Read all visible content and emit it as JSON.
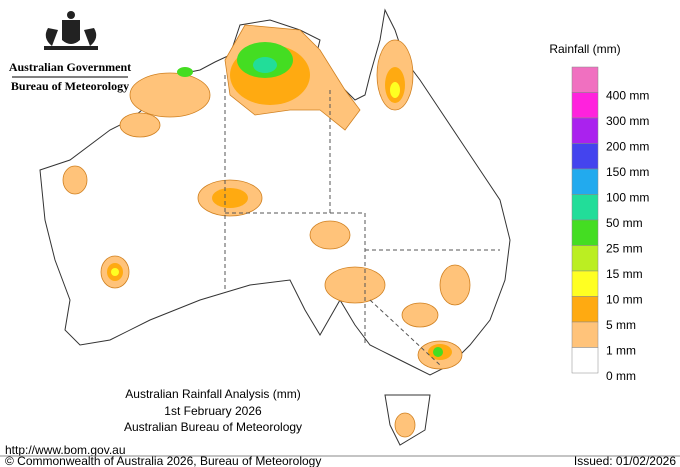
{
  "header": {
    "government": "Australian Government",
    "agency": "Bureau of Meteorology"
  },
  "legend": {
    "title": "Rainfall (mm)",
    "labels": [
      "400 mm",
      "300 mm",
      "200 mm",
      "150 mm",
      "100 mm",
      "50 mm",
      "25 mm",
      "15 mm",
      "10 mm",
      "5 mm",
      "1 mm",
      "0 mm"
    ],
    "colors": [
      "#f070c0",
      "#ff22dd",
      "#aa22ee",
      "#4444ee",
      "#22aaee",
      "#22dd99",
      "#44dd22",
      "#bbee22",
      "#ffff22",
      "#ffaa11",
      "#ffc37a",
      "#ffffff"
    ]
  },
  "title": {
    "line1": "Australian Rainfall Analysis (mm)",
    "line2": "1st February 2026",
    "line3": "Australian Bureau of Meteorology"
  },
  "footer": {
    "url": "http://www.bom.gov.au",
    "copyright": "© Commonwealth of Australia 2026, Bureau of Meteorology",
    "issued": "Issued: 01/02/2026"
  }
}
